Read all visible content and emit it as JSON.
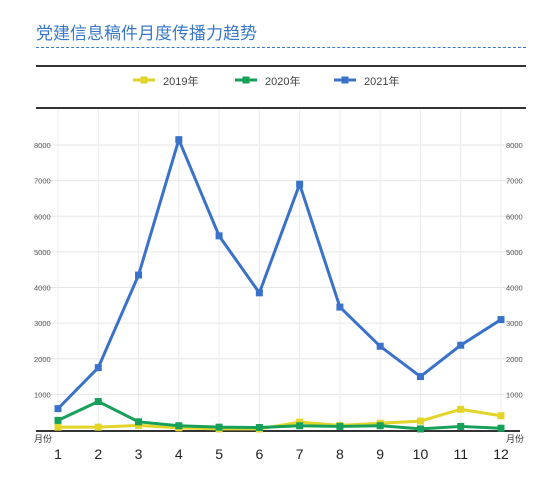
{
  "title": "党建信息稿件月度传播力趋势",
  "chart_data": {
    "type": "line",
    "title": "党建信息稿件月度传播力趋势",
    "xlabel": "月份",
    "ylabel": "",
    "categories": [
      "1",
      "2",
      "3",
      "4",
      "5",
      "6",
      "7",
      "8",
      "9",
      "10",
      "11",
      "12"
    ],
    "ylim": [
      0,
      8000
    ],
    "yticks": [
      1000,
      2000,
      3000,
      4000,
      5000,
      6000,
      7000,
      8000
    ],
    "grid": true,
    "legend_position": "top-center",
    "series": [
      {
        "name": "2019年",
        "color": "#e3d42a",
        "values": [
          80,
          80,
          130,
          60,
          30,
          30,
          220,
          130,
          190,
          250,
          580,
          400
        ]
      },
      {
        "name": "2020年",
        "color": "#16a05a",
        "values": [
          270,
          800,
          230,
          120,
          80,
          70,
          120,
          100,
          120,
          30,
          100,
          50
        ]
      },
      {
        "name": "2021年",
        "color": "#3a72c9",
        "values": [
          600,
          1750,
          4350,
          8150,
          5450,
          3850,
          6900,
          3450,
          2350,
          1500,
          2380,
          3100
        ]
      }
    ]
  }
}
